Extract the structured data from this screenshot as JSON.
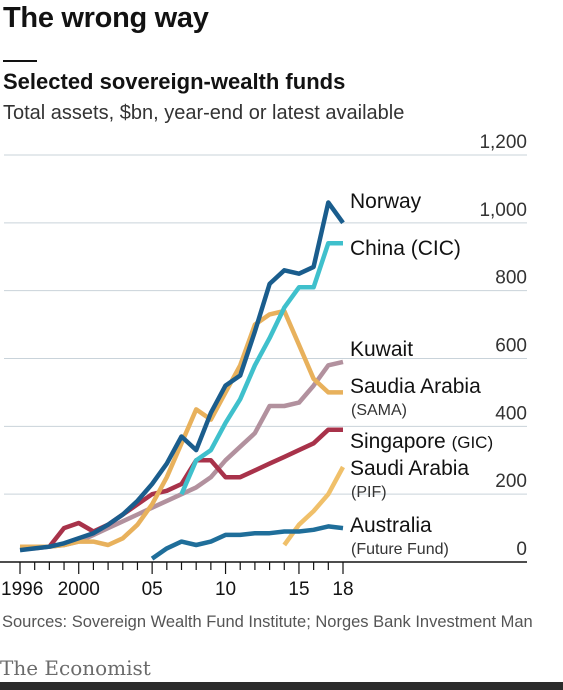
{
  "header": {
    "headline": "The wrong way",
    "title": "Selected sovereign-wealth funds",
    "subtitle": "Total assets, $bn, year-end or latest available"
  },
  "footer": {
    "source": "Sources: Sovereign Wealth Fund Institute; Norges Bank Investment Man",
    "brand": "The Economist"
  },
  "chart_data": {
    "type": "line",
    "title": "Selected sovereign-wealth funds",
    "subtitle": "Total assets, $bn, year-end or latest available",
    "xlabel": "",
    "ylabel": "",
    "xlim": [
      1996,
      2018
    ],
    "ylim": [
      0,
      1200
    ],
    "y_ticks": [
      0,
      200,
      400,
      600,
      800,
      1000,
      1200
    ],
    "y_tick_labels": [
      "0",
      "200",
      "400",
      "600",
      "800",
      "1,000",
      "1,200"
    ],
    "x_ticks": [
      1996,
      2000,
      2005,
      2010,
      2015,
      2018
    ],
    "x_tick_labels": [
      "1996",
      "2000",
      "05",
      "10",
      "15",
      "18"
    ],
    "grid": true,
    "y_axis_side": "right",
    "series": [
      {
        "name": "Norway",
        "label_lines": [
          "Norway"
        ],
        "color": "#1a5d8d",
        "x": [
          1996,
          1997,
          1998,
          1999,
          2000,
          2001,
          2002,
          2003,
          2004,
          2005,
          2006,
          2007,
          2008,
          2009,
          2010,
          2011,
          2012,
          2013,
          2014,
          2015,
          2016,
          2017,
          2018
        ],
        "y": [
          35,
          40,
          45,
          55,
          70,
          85,
          110,
          140,
          180,
          230,
          290,
          370,
          330,
          440,
          520,
          550,
          680,
          820,
          860,
          850,
          870,
          1060,
          1000
        ]
      },
      {
        "name": "China (CIC)",
        "label_lines": [
          "China (CIC)"
        ],
        "color": "#3fc0cc",
        "x": [
          2007,
          2008,
          2009,
          2010,
          2011,
          2012,
          2013,
          2014,
          2015,
          2016,
          2017,
          2018
        ],
        "y": [
          200,
          300,
          330,
          410,
          480,
          580,
          660,
          750,
          810,
          810,
          940,
          940
        ]
      },
      {
        "name": "Kuwait",
        "label_lines": [
          "Kuwait"
        ],
        "color": "#b2919e",
        "x": [
          1996,
          1997,
          1998,
          1999,
          2000,
          2001,
          2002,
          2003,
          2004,
          2005,
          2006,
          2007,
          2008,
          2009,
          2010,
          2011,
          2012,
          2013,
          2014,
          2015,
          2016,
          2017,
          2018
        ],
        "y": [
          40,
          40,
          45,
          50,
          60,
          80,
          100,
          120,
          140,
          160,
          180,
          200,
          220,
          250,
          300,
          340,
          380,
          460,
          460,
          470,
          520,
          580,
          590
        ]
      },
      {
        "name": "Saudia Arabia (SAMA)",
        "label_lines": [
          "Saudia Arabia",
          "(SAMA)"
        ],
        "color": "#e8b15c",
        "x": [
          1996,
          1997,
          1998,
          1999,
          2000,
          2001,
          2002,
          2003,
          2004,
          2005,
          2006,
          2007,
          2008,
          2009,
          2010,
          2011,
          2012,
          2013,
          2014,
          2015,
          2016,
          2017,
          2018
        ],
        "y": [
          45,
          45,
          45,
          50,
          60,
          60,
          50,
          70,
          110,
          170,
          250,
          350,
          450,
          420,
          500,
          580,
          700,
          730,
          740,
          640,
          540,
          500,
          500
        ]
      },
      {
        "name": "Singapore (GIC)",
        "label_lines": [
          "Singapore (GIC)"
        ],
        "color": "#a8324a",
        "x": [
          1996,
          1997,
          1998,
          1999,
          2000,
          2001,
          2002,
          2003,
          2004,
          2005,
          2006,
          2007,
          2008,
          2009,
          2010,
          2011,
          2012,
          2013,
          2014,
          2015,
          2016,
          2017,
          2018
        ],
        "y": [
          45,
          45,
          45,
          100,
          115,
          90,
          110,
          140,
          170,
          200,
          210,
          230,
          300,
          300,
          250,
          250,
          270,
          290,
          310,
          330,
          350,
          390,
          390
        ]
      },
      {
        "name": "Saudi Arabia (PIF)",
        "label_lines": [
          "Saudi Arabia",
          "(PIF)"
        ],
        "color": "#f0c06a",
        "x": [
          2014,
          2015,
          2016,
          2017,
          2018
        ],
        "y": [
          50,
          110,
          150,
          200,
          280
        ]
      },
      {
        "name": "Australia (Future Fund)",
        "label_lines": [
          "Australia",
          "(Future Fund)"
        ],
        "color": "#1f6e9a",
        "x": [
          2005,
          2006,
          2007,
          2008,
          2009,
          2010,
          2011,
          2012,
          2013,
          2014,
          2015,
          2016,
          2017,
          2018
        ],
        "y": [
          10,
          40,
          60,
          50,
          60,
          80,
          80,
          85,
          85,
          90,
          90,
          95,
          105,
          100
        ]
      }
    ]
  }
}
